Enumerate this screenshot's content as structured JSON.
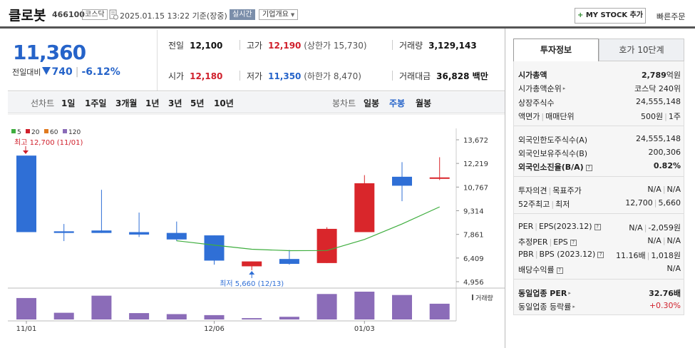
{
  "header": {
    "name": "클로봇",
    "code": "466100",
    "market": "코스닥",
    "datetime": "2025.01.15 13:22 기준(장중)",
    "realtime": "실시간",
    "company_info": "기업개요",
    "mystock_label": "MY STOCK 추가",
    "quick_order": "빠른주문"
  },
  "price": {
    "current": "11,360",
    "diff_label": "전일대비",
    "diff": "740",
    "diff_pct": "-6.12%",
    "color": "#2563c9"
  },
  "stats": {
    "prev": {
      "label": "전일",
      "value": "12,100"
    },
    "high": {
      "label": "고가",
      "value": "12,190",
      "sub": "(상한가 15,730)"
    },
    "volume": {
      "label": "거래량",
      "value": "3,129,143"
    },
    "open": {
      "label": "시가",
      "value": "12,180"
    },
    "low": {
      "label": "저가",
      "value": "11,350",
      "sub": "(하한가 8,470)"
    },
    "amount": {
      "label": "거래대금",
      "value": "36,828 백만"
    }
  },
  "period_bar": {
    "line_label": "선차트",
    "line_items": [
      "1일",
      "1주일",
      "3개월",
      "1년",
      "3년",
      "5년",
      "10년"
    ],
    "candle_label": "봉차트",
    "candle_items": [
      "일봉",
      "주봉",
      "월봉"
    ],
    "selected": "주봉"
  },
  "chart_data": {
    "type": "candlestick",
    "legend": [
      {
        "name": "5",
        "color": "#3fae3f"
      },
      {
        "name": "20",
        "color": "#d0202c"
      },
      {
        "name": "60",
        "color": "#e07a1f"
      },
      {
        "name": "120",
        "color": "#8b6cb8"
      }
    ],
    "y_ticks": [
      "13,672",
      "12,219",
      "10,767",
      "9,314",
      "7,861",
      "6,409",
      "4,956"
    ],
    "ylim": [
      4956,
      13672
    ],
    "x_labels": [
      "11/01",
      "12/06",
      "01/03"
    ],
    "candles": [
      {
        "o": 12700,
        "c": 8000,
        "h": 12700,
        "l": 8000
      },
      {
        "o": 8050,
        "c": 7950,
        "h": 8500,
        "l": 7450
      },
      {
        "o": 8100,
        "c": 7950,
        "h": 10600,
        "l": 7950
      },
      {
        "o": 8000,
        "c": 7850,
        "h": 9200,
        "l": 7700
      },
      {
        "o": 7950,
        "c": 7550,
        "h": 8650,
        "l": 7450
      },
      {
        "o": 7800,
        "c": 6250,
        "h": 7800,
        "l": 6000
      },
      {
        "o": 5900,
        "c": 6200,
        "h": 6200,
        "l": 5660
      },
      {
        "o": 6350,
        "c": 6050,
        "h": 6900,
        "l": 6000
      },
      {
        "o": 6100,
        "c": 8200,
        "h": 8300,
        "l": 6100
      },
      {
        "o": 8000,
        "c": 11000,
        "h": 11500,
        "l": 8000
      },
      {
        "o": 11400,
        "c": 10850,
        "h": 12300,
        "l": 9900
      },
      {
        "o": 11300,
        "c": 11360,
        "h": 12600,
        "l": 11200
      }
    ],
    "ma5": [
      null,
      null,
      null,
      null,
      7470,
      7200,
      6950,
      6860,
      6870,
      7550,
      8500,
      9550
    ],
    "volume_label": "거래량",
    "volume": [
      6.4,
      2.0,
      7.1,
      1.9,
      1.6,
      1.3,
      0.4,
      0.8,
      7.6,
      8.3,
      7.3,
      4.7
    ],
    "max_label": "최고 12,700 (11/01)",
    "min_label": "최저 5,660 (12/13)",
    "up_color": "#d9262b",
    "down_color": "#2f6fd6"
  },
  "side": {
    "tab_active": "투자정보",
    "tab_other": "호가 10단계",
    "rows": {
      "mcap": {
        "label": "시가총액",
        "value": "2,789",
        "unit": "억원"
      },
      "mcap_rank": {
        "label": "시가총액순위",
        "value": "코스닥 240위"
      },
      "shares": {
        "label": "상장주식수",
        "value": "24,555,148"
      },
      "par": {
        "label": "액면가",
        "label2": "매매단위",
        "value": "500원",
        "value2": "1주"
      },
      "foreign_limit": {
        "label": "외국인한도주식수(A)",
        "value": "24,555,148"
      },
      "foreign_hold": {
        "label": "외국인보유주식수(B)",
        "value": "200,306"
      },
      "foreign_rate": {
        "label": "외국인소진율(B/A)",
        "value": "0.82%"
      },
      "opinion": {
        "label": "투자의견",
        "label2": "목표주가",
        "value": "N/A",
        "value2": "N/A"
      },
      "w52": {
        "label": "52주최고",
        "label2": "최저",
        "value": "12,700",
        "value2": "5,660"
      },
      "per": {
        "label": "PER",
        "label2": "EPS(2023.12)",
        "value": "N/A",
        "value2": "-2,059원"
      },
      "est_per": {
        "label": "추정PER",
        "label2": "EPS",
        "value": "N/A",
        "value2": "N/A"
      },
      "pbr": {
        "label": "PBR",
        "label2": "BPS (2023.12)",
        "value": "11.16배",
        "value2": "1,018원"
      },
      "div": {
        "label": "배당수익률",
        "value": "N/A"
      },
      "ind_per": {
        "label": "동일업종 PER",
        "value": "32.76배"
      },
      "ind_rate": {
        "label": "동일업종 등락률",
        "value": "+0.30%"
      }
    }
  }
}
